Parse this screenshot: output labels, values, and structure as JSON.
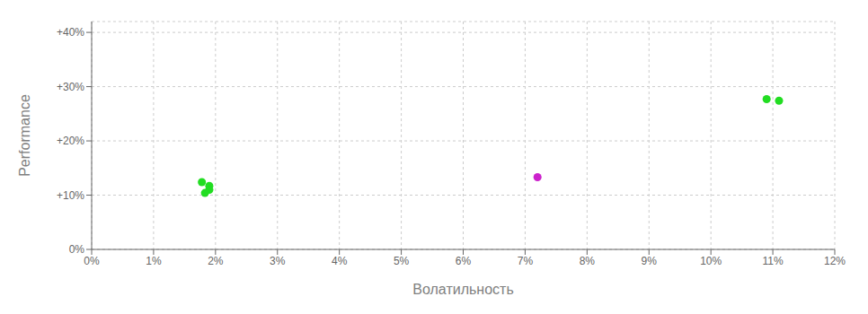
{
  "chart_data": {
    "type": "scatter",
    "xlabel": "Волатильность",
    "ylabel": "Performance",
    "xlim": [
      0.0,
      0.12
    ],
    "ylim": [
      0.0,
      0.42
    ],
    "xticks": [
      {
        "value": 0.0,
        "label": "0%"
      },
      {
        "value": 0.01,
        "label": "1%"
      },
      {
        "value": 0.02,
        "label": "2%"
      },
      {
        "value": 0.03,
        "label": "3%"
      },
      {
        "value": 0.04,
        "label": "4%"
      },
      {
        "value": 0.05,
        "label": "5%"
      },
      {
        "value": 0.06,
        "label": "6%"
      },
      {
        "value": 0.07,
        "label": "7%"
      },
      {
        "value": 0.08,
        "label": "8%"
      },
      {
        "value": 0.09,
        "label": "9%"
      },
      {
        "value": 0.1,
        "label": "10%"
      },
      {
        "value": 0.11,
        "label": "11%"
      },
      {
        "value": 0.12,
        "label": "12%"
      }
    ],
    "yticks": [
      {
        "value": 0.0,
        "label": "0%"
      },
      {
        "value": 0.1,
        "label": "+10%"
      },
      {
        "value": 0.2,
        "label": "+20%"
      },
      {
        "value": 0.3,
        "label": "+30%"
      },
      {
        "value": 0.4,
        "label": "+40%"
      }
    ],
    "grid": true,
    "series": [
      {
        "color": "#22dd22",
        "x": [
          0.0178,
          0.019,
          0.019,
          0.0183,
          0.109,
          0.111
        ],
        "values": [
          0.124,
          0.117,
          0.11,
          0.104,
          0.277,
          0.274
        ]
      },
      {
        "color": "#cc22cc",
        "x": [
          0.072
        ],
        "values": [
          0.133
        ]
      }
    ]
  }
}
